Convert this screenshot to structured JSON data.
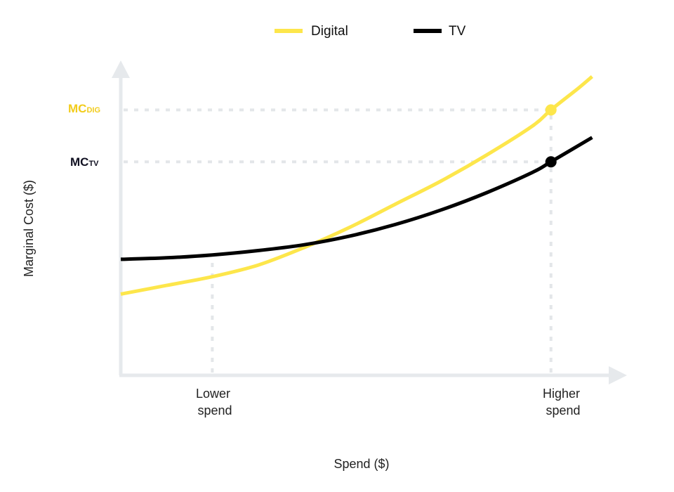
{
  "chart_data": {
    "type": "line",
    "title": "",
    "xlabel": "Spend ($)",
    "ylabel": "Marginal Cost ($)",
    "x_tick_labels": [
      {
        "lines": [
          "Lower",
          "spend"
        ],
        "x": 0.2
      },
      {
        "lines": [
          "Higher",
          "spend"
        ],
        "x": 0.94
      }
    ],
    "y_markers": [
      {
        "main": "MC",
        "sub": "DIG",
        "y": 0.915,
        "series": "Digital"
      },
      {
        "main": "MC",
        "sub": "TV",
        "y": 0.736,
        "series": "TV"
      }
    ],
    "xlim": [
      0,
      1.08
    ],
    "ylim": [
      0,
      1.1
    ],
    "legend_position": "top-center",
    "grid": false,
    "series": [
      {
        "name": "Digital",
        "color": "#FDE64B",
        "x": [
          0,
          0.1,
          0.2,
          0.3,
          0.4,
          0.5,
          0.6,
          0.7,
          0.8,
          0.9,
          0.94,
          1.0,
          1.03
        ],
        "y": [
          0.28,
          0.31,
          0.34,
          0.38,
          0.44,
          0.51,
          0.59,
          0.67,
          0.76,
          0.86,
          0.915,
          0.99,
          1.03
        ]
      },
      {
        "name": "TV",
        "color": "#000000",
        "x": [
          0,
          0.1,
          0.2,
          0.3,
          0.4,
          0.5,
          0.6,
          0.7,
          0.8,
          0.9,
          0.94,
          1.03
        ],
        "y": [
          0.4,
          0.405,
          0.415,
          0.43,
          0.45,
          0.48,
          0.52,
          0.57,
          0.63,
          0.7,
          0.736,
          0.82
        ]
      }
    ],
    "highlight_points": [
      {
        "series": "Digital",
        "x": 0.94,
        "y": 0.915
      },
      {
        "series": "TV",
        "x": 0.94,
        "y": 0.736
      }
    ],
    "reference_lines": [
      {
        "type": "vertical",
        "x": 0.2
      },
      {
        "type": "vertical",
        "x": 0.94
      },
      {
        "type": "horizontal",
        "y": 0.915
      },
      {
        "type": "horizontal",
        "y": 0.736
      }
    ],
    "colors": {
      "axis": "#E6E9EC",
      "reference": "#E3E6E9",
      "mc_digital_label": "#F2CC1C",
      "mc_tv_label": "#111122"
    }
  }
}
